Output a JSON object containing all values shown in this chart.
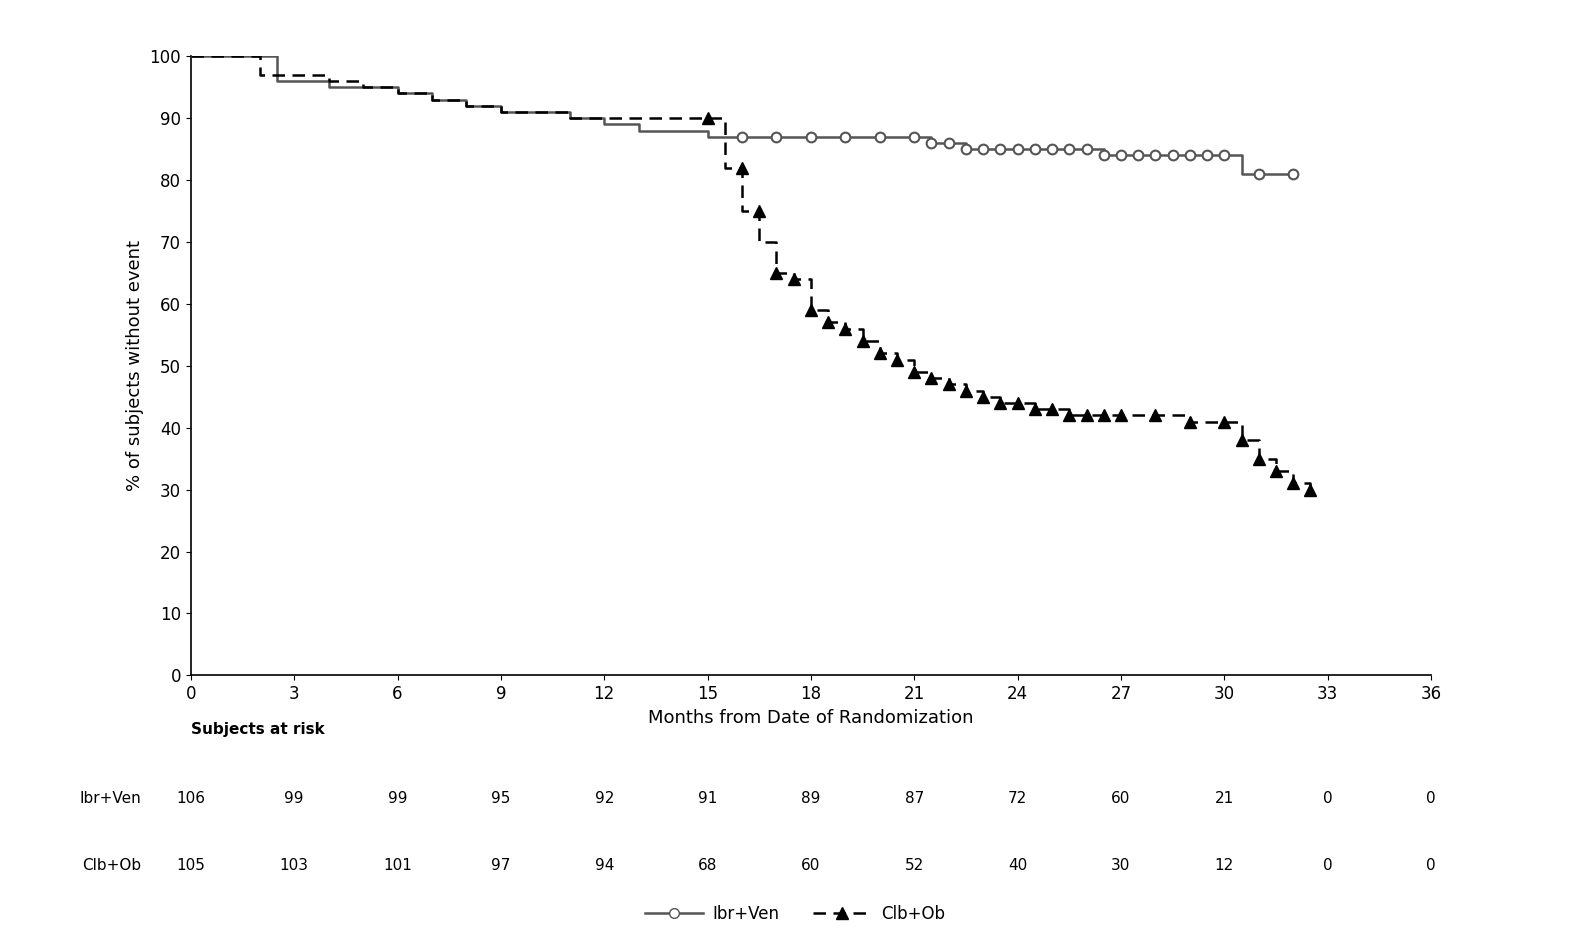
{
  "ibr_ven_times": [
    0,
    1.5,
    2.5,
    3,
    4,
    5,
    6,
    7,
    8,
    9,
    10,
    11,
    12,
    13,
    14,
    15,
    16,
    17,
    18,
    19,
    20,
    21,
    21.5,
    22,
    22.5,
    23,
    23.5,
    24,
    24.5,
    25,
    25.5,
    26,
    26.5,
    27,
    27.5,
    28,
    28.5,
    29,
    29.5,
    30,
    30.5,
    31,
    32
  ],
  "ibr_ven_surv": [
    100,
    100,
    96,
    96,
    95,
    95,
    94,
    93,
    92,
    91,
    91,
    90,
    89,
    88,
    88,
    87,
    87,
    87,
    87,
    87,
    87,
    87,
    86,
    86,
    85,
    85,
    85,
    85,
    85,
    85,
    85,
    85,
    84,
    84,
    84,
    84,
    84,
    84,
    84,
    84,
    81,
    81,
    81
  ],
  "ibr_ven_censor_times": [
    16,
    17,
    18,
    19,
    20,
    21,
    21.5,
    22,
    22.5,
    23,
    23.5,
    24,
    24.5,
    25,
    25.5,
    26,
    26.5,
    27,
    27.5,
    28,
    28.5,
    29,
    29.5,
    30,
    31,
    32
  ],
  "ibr_ven_censor_surv": [
    87,
    87,
    87,
    87,
    87,
    87,
    86,
    86,
    85,
    85,
    85,
    85,
    85,
    85,
    85,
    85,
    84,
    84,
    84,
    84,
    84,
    84,
    84,
    84,
    81,
    81
  ],
  "clb_ob_times": [
    0,
    1,
    2,
    3,
    4,
    5,
    6,
    7,
    8,
    9,
    10,
    11,
    12,
    13,
    14,
    15,
    15.5,
    16,
    16.5,
    17,
    17.5,
    18,
    18.5,
    19,
    19.5,
    20,
    20.5,
    21,
    21.5,
    22,
    22.5,
    23,
    23.5,
    24,
    24.5,
    25,
    25.5,
    26,
    26.5,
    27,
    27.5,
    28,
    28.5,
    29,
    29.5,
    30,
    30.5,
    31,
    31.5,
    32,
    32.5
  ],
  "clb_ob_surv": [
    100,
    100,
    97,
    97,
    96,
    95,
    94,
    93,
    92,
    91,
    91,
    90,
    90,
    90,
    90,
    90,
    82,
    75,
    70,
    65,
    64,
    59,
    57,
    56,
    54,
    52,
    51,
    49,
    48,
    47,
    46,
    45,
    44,
    44,
    43,
    43,
    42,
    42,
    42,
    42,
    42,
    42,
    42,
    41,
    41,
    41,
    38,
    35,
    33,
    31,
    30
  ],
  "clb_ob_censor_times": [],
  "clb_ob_censor_surv": [],
  "xlim": [
    0,
    36
  ],
  "ylim": [
    0,
    100
  ],
  "xticks": [
    0,
    3,
    6,
    9,
    12,
    15,
    18,
    21,
    24,
    27,
    30,
    33,
    36
  ],
  "yticks": [
    0,
    10,
    20,
    30,
    40,
    50,
    60,
    70,
    80,
    90,
    100
  ],
  "xlabel": "Months from Date of Randomization",
  "ylabel": "% of subjects without event",
  "at_risk_label": "Subjects at risk",
  "at_risk_times": [
    0,
    3,
    6,
    9,
    12,
    15,
    18,
    21,
    24,
    27,
    30,
    33,
    36
  ],
  "ibr_ven_at_risk": [
    106,
    99,
    99,
    95,
    92,
    91,
    89,
    87,
    72,
    60,
    21,
    0,
    0
  ],
  "clb_ob_at_risk": [
    105,
    103,
    101,
    97,
    94,
    68,
    60,
    52,
    40,
    30,
    12,
    0,
    0
  ],
  "legend_ibr": "Ibr+Ven",
  "legend_clb": "Clb+Ob",
  "ibr_color": "#555555",
  "clb_color": "#000000",
  "background_color": "#ffffff"
}
